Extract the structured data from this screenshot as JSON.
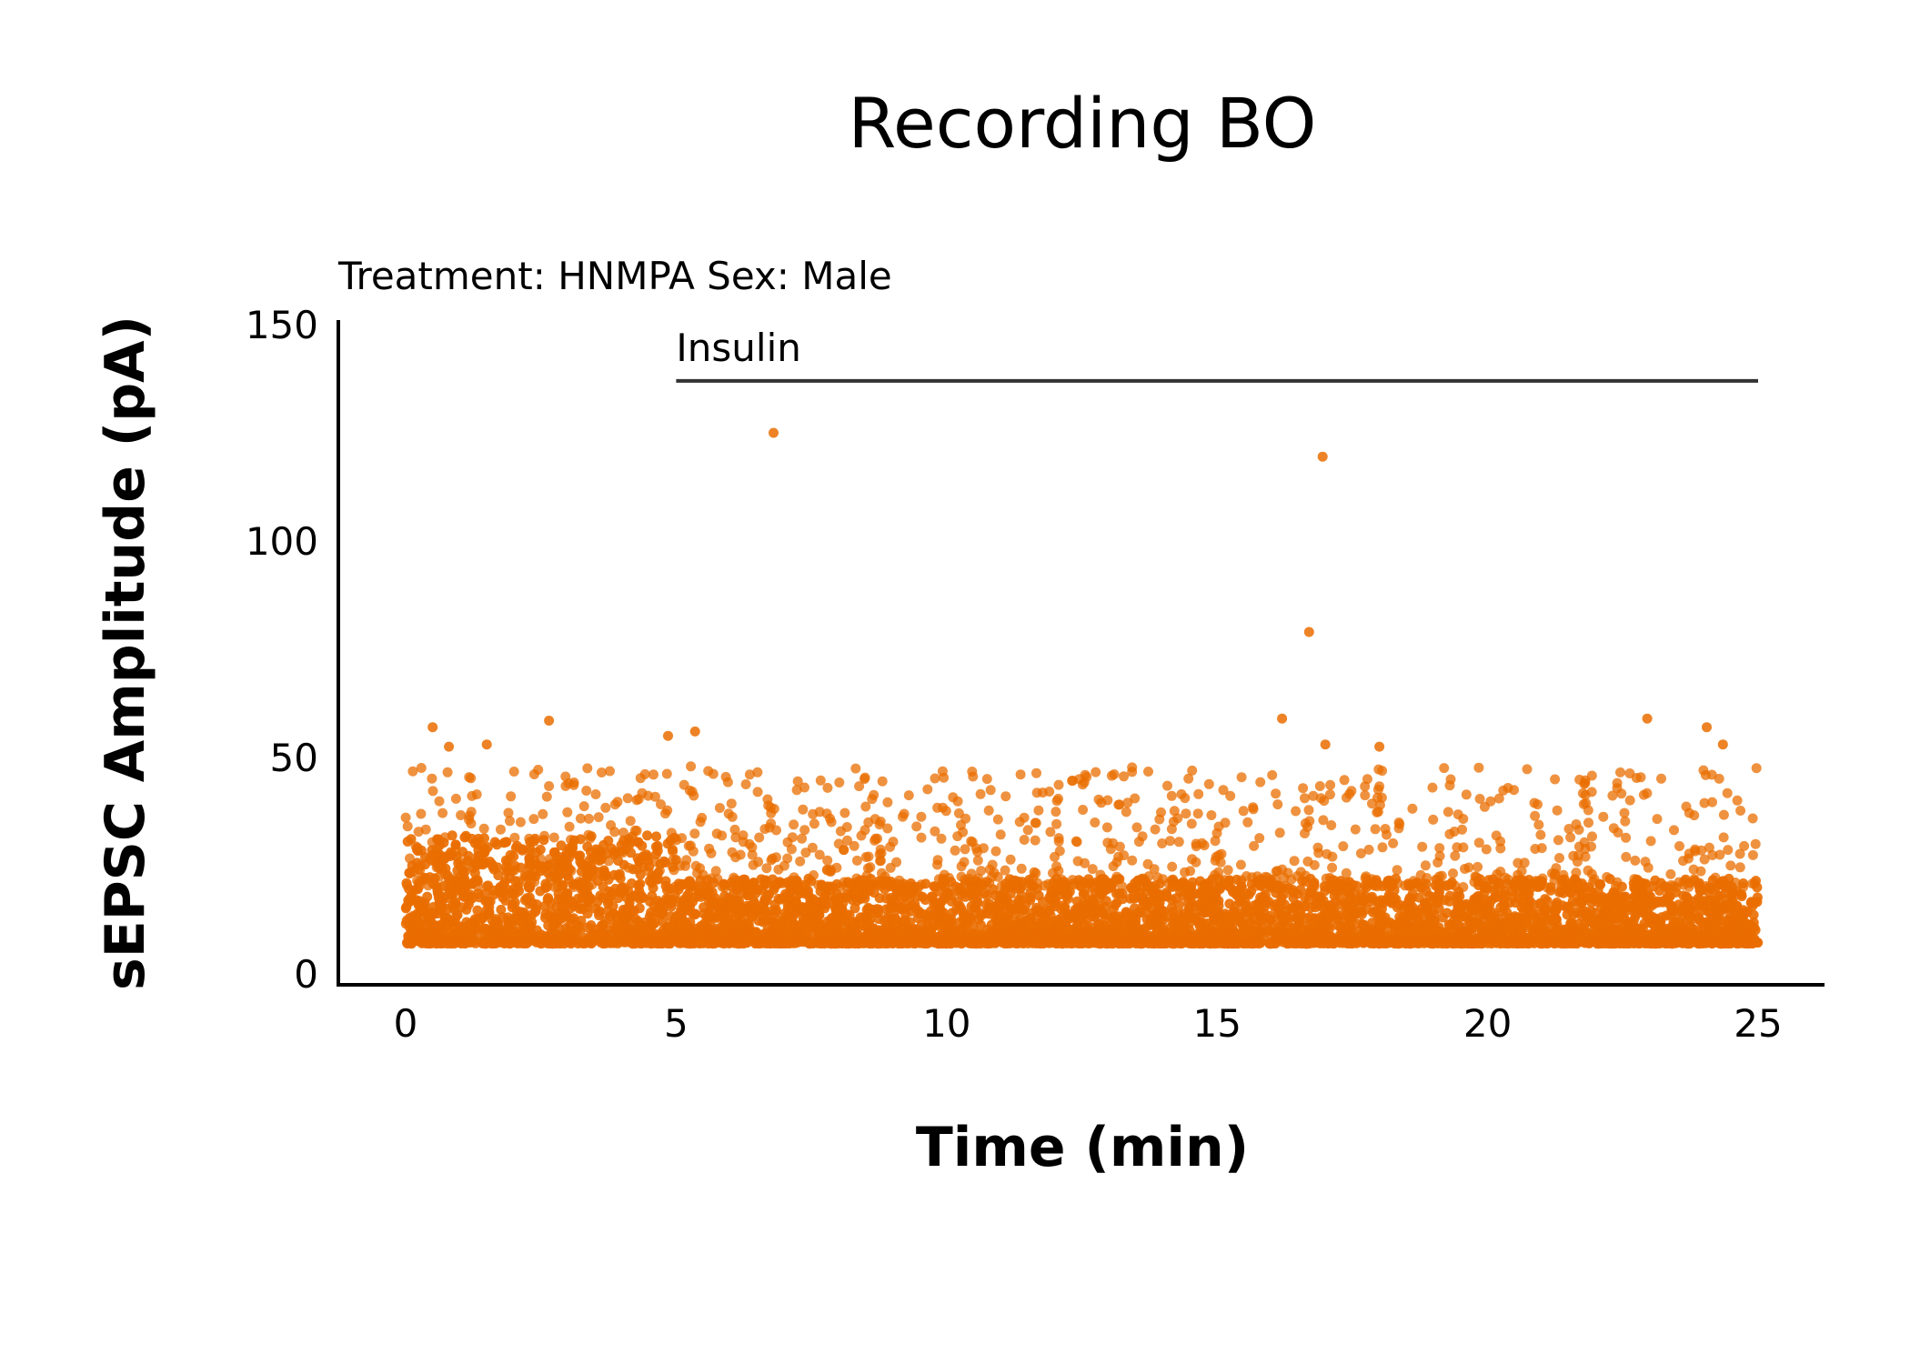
{
  "chart_data": {
    "type": "scatter",
    "title": "Recording BO",
    "subtitle": "Treatment: HNMPA  Sex: Male",
    "xlabel": "Time (min)",
    "ylabel": "sEPSC Amplitude (pA)",
    "xlim": [
      0,
      25
    ],
    "ylim": [
      0,
      150
    ],
    "xticks": [
      "0",
      "5",
      "10",
      "15",
      "20",
      "25"
    ],
    "yticks": [
      "0",
      "50",
      "100",
      "150"
    ],
    "point_color": "#ea6d00",
    "bar_color": "#333333",
    "grid": false,
    "legend": "none",
    "annotation": {
      "label": "Insulin",
      "x_start": 5,
      "x_end": 25,
      "y": 137
    },
    "outliers": [
      {
        "x": 6.8,
        "y": 125
      },
      {
        "x": 16.95,
        "y": 119.5
      },
      {
        "x": 16.7,
        "y": 79
      },
      {
        "x": 16.2,
        "y": 59
      },
      {
        "x": 22.95,
        "y": 59
      },
      {
        "x": 2.65,
        "y": 58.5
      },
      {
        "x": 24.05,
        "y": 57
      },
      {
        "x": 0.5,
        "y": 57
      },
      {
        "x": 5.35,
        "y": 56
      },
      {
        "x": 4.85,
        "y": 55
      },
      {
        "x": 24.35,
        "y": 53
      },
      {
        "x": 17.0,
        "y": 53
      },
      {
        "x": 18.0,
        "y": 52.5
      },
      {
        "x": 1.5,
        "y": 53
      },
      {
        "x": 0.8,
        "y": 52.5
      }
    ],
    "bulk": {
      "x_range": [
        0,
        25
      ],
      "y_floor": 7,
      "dense_top_pre_insulin": 32,
      "dense_top_post_insulin": 22,
      "sparse_top": 48
    }
  }
}
